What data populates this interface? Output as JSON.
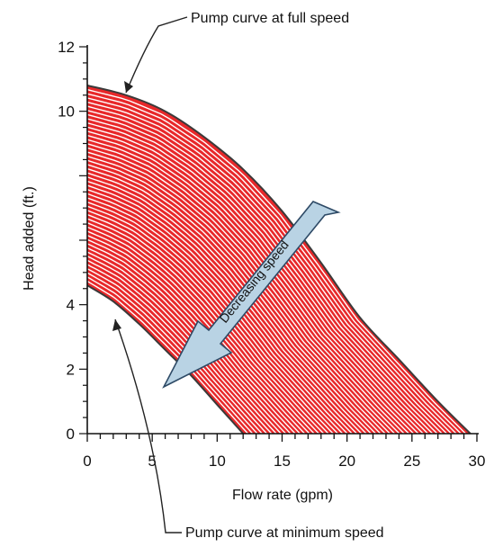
{
  "chart_data": {
    "type": "area",
    "title": "",
    "xlabel": "Flow rate (gpm)",
    "ylabel": "Head added (ft.)",
    "xlim": [
      0,
      30
    ],
    "ylim": [
      0,
      12
    ],
    "xticks": [
      0,
      5,
      10,
      15,
      20,
      25,
      30
    ],
    "yticks": [
      0,
      2,
      4,
      10,
      12
    ],
    "grid": false,
    "colors": {
      "band_fill": "#e8282a",
      "band_hatch": "#ffffff",
      "curve_stroke": "#3a3a3a",
      "arrow_fill": "#b9d3e4"
    },
    "series": [
      {
        "x": [
          0,
          3,
          6,
          9,
          12,
          15,
          18,
          21,
          24,
          27,
          29.5
        ],
        "y": [
          10.8,
          10.5,
          10.0,
          9.2,
          8.2,
          6.9,
          5.3,
          3.6,
          2.3,
          1.0,
          0
        ]
      },
      {
        "x": [
          0,
          2,
          4,
          6,
          8,
          10,
          12
        ],
        "y": [
          4.6,
          4.1,
          3.4,
          2.6,
          1.8,
          0.9,
          0
        ]
      }
    ],
    "annotations": {
      "full_speed": "Pump curve at full speed",
      "minimum_speed": "Pump curve at minimum speed",
      "arrow": "Decreasing speed"
    }
  }
}
